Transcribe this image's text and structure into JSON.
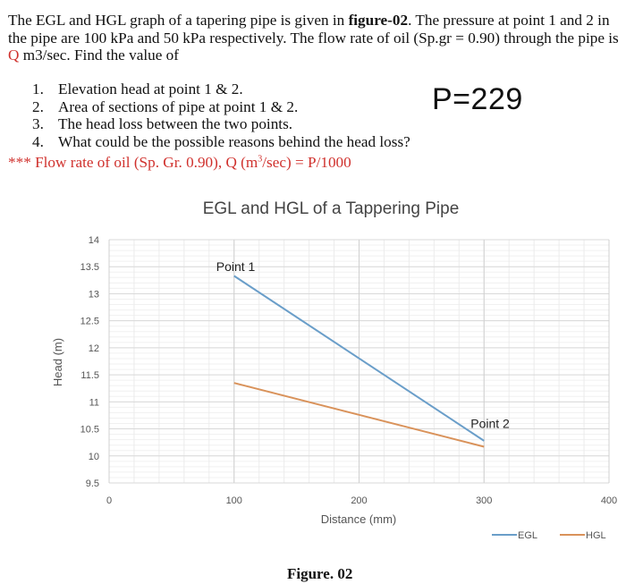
{
  "problem": {
    "intro_part1": "The EGL and HGL graph of a tapering pipe is given in ",
    "intro_bold": "figure-02",
    "intro_part2": ". The pressure at point 1 and 2 in the pipe are 100 kPa and 50 kPa respectively. The flow rate of oil (Sp.gr = 0.90) through the pipe is ",
    "intro_q": "Q",
    "intro_part3": " m3/sec. Find the value of",
    "questions": [
      {
        "num": "1.",
        "text": "Elevation head at point 1 & 2."
      },
      {
        "num": "2.",
        "text": "Area of sections of pipe at point 1 & 2."
      },
      {
        "num": "3.",
        "text": "The head loss between the two points."
      },
      {
        "num": "4.",
        "text": "What could be the possible reasons behind the head loss?"
      }
    ],
    "p_value": "P=229",
    "note_prefix": "*** Flow rate of oil (Sp. Gr. 0.90), Q (m",
    "note_sup": "3",
    "note_suffix": "/sec) = P/1000"
  },
  "figure_caption": "Figure. 02",
  "chart_data": {
    "type": "line",
    "title": "EGL and HGL of  a Tappering Pipe",
    "xlabel": "Distance (mm)",
    "ylabel": "Head (m)",
    "xlim": [
      0,
      400
    ],
    "ylim": [
      9.5,
      14
    ],
    "x_ticks": [
      "0",
      "100",
      "200",
      "300",
      "400"
    ],
    "y_ticks": [
      "14",
      "13.5",
      "13",
      "12.5",
      "12",
      "11.5",
      "11",
      "10.5",
      "10",
      "9.5"
    ],
    "grid": true,
    "legend_position": "bottom-right",
    "series": [
      {
        "name": "EGL",
        "color": "#6a9ec9",
        "x": [
          100,
          300
        ],
        "y": [
          13.33,
          10.28
        ]
      },
      {
        "name": "HGL",
        "color": "#d9925a",
        "x": [
          100,
          300
        ],
        "y": [
          11.35,
          10.17
        ]
      }
    ],
    "annotations": [
      {
        "text": "Point 1",
        "x": 100,
        "y": 13.5
      },
      {
        "text": "Point 2",
        "x": 300,
        "y": 10.6
      }
    ]
  }
}
